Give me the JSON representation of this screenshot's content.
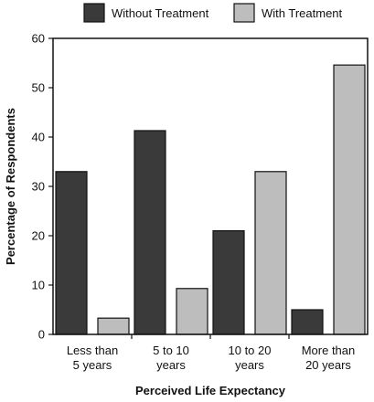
{
  "chart_data": {
    "type": "bar",
    "categories": [
      [
        "Less than",
        "5 years"
      ],
      [
        "5 to 10",
        "years"
      ],
      [
        "10 to 20",
        "years"
      ],
      [
        "More than",
        "20 years"
      ]
    ],
    "series": [
      {
        "name": "Without Treatment",
        "color": "#3a3a3a",
        "values": [
          33,
          41.3,
          21,
          5
        ]
      },
      {
        "name": "With Treatment",
        "color": "#bdbdbd",
        "values": [
          3.3,
          9.3,
          33,
          54.6
        ]
      }
    ],
    "xlabel": "Perceived Life Expectancy",
    "ylabel": "Percentage of Respondents",
    "ylim": [
      0,
      60
    ],
    "yticks": [
      0,
      10,
      20,
      30,
      40,
      50,
      60
    ],
    "grid": false,
    "legend_position": "top"
  }
}
